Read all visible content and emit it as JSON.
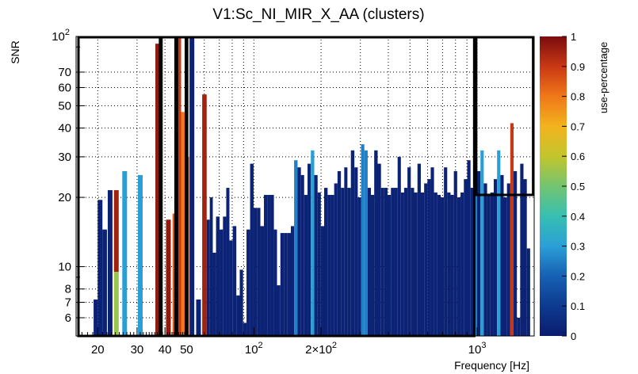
{
  "chart_data": {
    "type": "heatmap",
    "title": "V1:Sc_NI_MIR_X_AA (clusters)",
    "xlabel": "Frequency [Hz]",
    "ylabel": "SNR",
    "xscale": "log",
    "yscale": "log",
    "xlim": [
      16,
      1800
    ],
    "ylim": [
      5,
      100
    ],
    "grid": true,
    "x_ticks": [
      {
        "value": 20,
        "label": "20"
      },
      {
        "value": 30,
        "label": "30"
      },
      {
        "value": 40,
        "label": "40"
      },
      {
        "value": 50,
        "label": "50"
      },
      {
        "value": 100,
        "label": "10",
        "sup": "2"
      },
      {
        "value": 200,
        "label": "2×10",
        "sup": "2"
      },
      {
        "value": 1000,
        "label": "10",
        "sup": "3"
      }
    ],
    "y_ticks": [
      {
        "value": 6,
        "label": "6"
      },
      {
        "value": 7,
        "label": "7"
      },
      {
        "value": 8,
        "label": "8"
      },
      {
        "value": 10,
        "label": "10"
      },
      {
        "value": 20,
        "label": "20"
      },
      {
        "value": 30,
        "label": "30"
      },
      {
        "value": 40,
        "label": "40"
      },
      {
        "value": 50,
        "label": "50"
      },
      {
        "value": 60,
        "label": "60"
      },
      {
        "value": 70,
        "label": "70"
      },
      {
        "value": 100,
        "label": "10",
        "sup": "2"
      }
    ],
    "colorbar": {
      "label": "use-percentage",
      "range": [
        0,
        1
      ],
      "ticks": [
        "0",
        "0.1",
        "0.2",
        "0.3",
        "0.4",
        "0.5",
        "0.6",
        "0.7",
        "0.8",
        "0.9",
        "1"
      ]
    },
    "columns": [
      {
        "f": 19.5,
        "snr": 7.2
      },
      {
        "f": 20.5,
        "snr": 19.5
      },
      {
        "f": 21.5,
        "snr": 14.5
      },
      {
        "f": 22.5,
        "snr": 21.5
      },
      {
        "f": 24.5,
        "snr": 21.5,
        "segments": [
          {
            "to": 9.5,
            "c": 0.55
          },
          {
            "to": 21.5,
            "c": 0.95
          }
        ]
      },
      {
        "f": 25.5,
        "snr": 26,
        "c": 0.3
      },
      {
        "f": 30.5,
        "snr": 25,
        "c": 0.3
      },
      {
        "f": 39,
        "snr": 93,
        "c": 0.97
      },
      {
        "f": 41,
        "snr": 16,
        "c": 0.97
      },
      {
        "f": 45,
        "snr": 17,
        "c": 0.85
      },
      {
        "f": 46.5,
        "snr": 98,
        "c": 0.9
      },
      {
        "f": 48,
        "snr": 47,
        "c": 0.8
      },
      {
        "f": 50.5,
        "snr": 30,
        "c": 0.9
      },
      {
        "f": 52,
        "snr": 100
      },
      {
        "f": 57,
        "snr": 7.2
      },
      {
        "f": 60.5,
        "snr": 56,
        "c": 0.95
      },
      {
        "f": 62.5,
        "snr": 16
      },
      {
        "f": 64.5,
        "snr": 20
      },
      {
        "f": 66.5,
        "snr": 11.5
      },
      {
        "f": 69,
        "snr": 16.5
      },
      {
        "f": 71.5,
        "snr": 14.5
      },
      {
        "f": 74,
        "snr": 16.5
      },
      {
        "f": 76.5,
        "snr": 22
      },
      {
        "f": 79,
        "snr": 13
      },
      {
        "f": 82,
        "snr": 15
      },
      {
        "f": 85,
        "snr": 7.5
      },
      {
        "f": 88,
        "snr": 9.7
      },
      {
        "f": 91,
        "snr": 5.7
      },
      {
        "f": 94.5,
        "snr": 14.5
      },
      {
        "f": 98,
        "snr": 28
      },
      {
        "f": 101.5,
        "snr": 18
      },
      {
        "f": 105,
        "snr": 18
      },
      {
        "f": 109,
        "snr": 15
      },
      {
        "f": 113,
        "snr": 20.5
      },
      {
        "f": 117,
        "snr": 20.5
      },
      {
        "f": 121,
        "snr": 20.5
      },
      {
        "f": 125,
        "snr": 14.5
      },
      {
        "f": 129,
        "snr": 8.3
      },
      {
        "f": 134,
        "snr": 14
      },
      {
        "f": 139,
        "snr": 14
      },
      {
        "f": 144,
        "snr": 14
      },
      {
        "f": 149,
        "snr": 15
      },
      {
        "f": 154,
        "snr": 29,
        "c": 0.25
      },
      {
        "f": 160,
        "snr": 27
      },
      {
        "f": 165,
        "snr": 25
      },
      {
        "f": 171,
        "snr": 20.5
      },
      {
        "f": 177,
        "snr": 28
      },
      {
        "f": 183,
        "snr": 32,
        "c": 0.3
      },
      {
        "f": 190,
        "snr": 25
      },
      {
        "f": 196,
        "snr": 21
      },
      {
        "f": 203,
        "snr": 15
      },
      {
        "f": 210,
        "snr": 22
      },
      {
        "f": 218,
        "snr": 20.5
      },
      {
        "f": 225,
        "snr": 20.5
      },
      {
        "f": 233,
        "snr": 23
      },
      {
        "f": 241,
        "snr": 26
      },
      {
        "f": 250,
        "snr": 22
      },
      {
        "f": 258,
        "snr": 27
      },
      {
        "f": 267,
        "snr": 22
      },
      {
        "f": 277,
        "snr": 32
      },
      {
        "f": 287,
        "snr": 27
      },
      {
        "f": 297,
        "snr": 20
      },
      {
        "f": 307,
        "snr": 34,
        "c": 0.25
      },
      {
        "f": 318,
        "snr": 32,
        "c": 0.25
      },
      {
        "f": 329,
        "snr": 22
      },
      {
        "f": 340,
        "snr": 20.5
      },
      {
        "f": 352,
        "snr": 32
      },
      {
        "f": 365,
        "snr": 28
      },
      {
        "f": 377,
        "snr": 22
      },
      {
        "f": 390,
        "snr": 22
      },
      {
        "f": 404,
        "snr": 20.5
      },
      {
        "f": 418,
        "snr": 22
      },
      {
        "f": 433,
        "snr": 22
      },
      {
        "f": 448,
        "snr": 30
      },
      {
        "f": 463,
        "snr": 21
      },
      {
        "f": 479,
        "snr": 22
      },
      {
        "f": 496,
        "snr": 27
      },
      {
        "f": 513,
        "snr": 22
      },
      {
        "f": 531,
        "snr": 21
      },
      {
        "f": 550,
        "snr": 28
      },
      {
        "f": 569,
        "snr": 21
      },
      {
        "f": 589,
        "snr": 23
      },
      {
        "f": 609,
        "snr": 24
      },
      {
        "f": 630,
        "snr": 27
      },
      {
        "f": 652,
        "snr": 21
      },
      {
        "f": 675,
        "snr": 20.5
      },
      {
        "f": 698,
        "snr": 20
      },
      {
        "f": 722,
        "snr": 27
      },
      {
        "f": 747,
        "snr": 21
      },
      {
        "f": 773,
        "snr": 20.5
      },
      {
        "f": 800,
        "snr": 26
      },
      {
        "f": 828,
        "snr": 20
      },
      {
        "f": 857,
        "snr": 21
      },
      {
        "f": 887,
        "snr": 24
      },
      {
        "f": 918,
        "snr": 29
      },
      {
        "f": 950,
        "snr": 22
      },
      {
        "f": 983,
        "snr": 32,
        "c": 0.25
      },
      {
        "f": 1017,
        "snr": 26
      },
      {
        "f": 1052,
        "snr": 32,
        "c": 0.3
      },
      {
        "f": 1089,
        "snr": 23
      },
      {
        "f": 1127,
        "snr": 20.5
      },
      {
        "f": 1166,
        "snr": 21
      },
      {
        "f": 1207,
        "snr": 24
      },
      {
        "f": 1249,
        "snr": 32,
        "c": 0.3
      },
      {
        "f": 1292,
        "snr": 25
      },
      {
        "f": 1337,
        "snr": 20
      },
      {
        "f": 1383,
        "snr": 23
      },
      {
        "f": 1431,
        "snr": 42,
        "c": 0.9
      },
      {
        "f": 1481,
        "snr": 26
      },
      {
        "f": 1532,
        "snr": 6
      },
      {
        "f": 1585,
        "snr": 28
      },
      {
        "f": 1640,
        "snr": 24
      },
      {
        "f": 1697,
        "snr": 12
      }
    ],
    "boxes": [
      {
        "f_from": 16.4,
        "f_to": 38.0,
        "snr_from": 5,
        "snr_to": 100
      },
      {
        "f_from": 38.6,
        "f_to": 44.6,
        "snr_from": 5,
        "snr_to": 100
      },
      {
        "f_from": 45.3,
        "f_to": 49.6,
        "snr_from": 5,
        "snr_to": 100
      },
      {
        "f_from": 50.3,
        "f_to": 970,
        "snr_from": 5,
        "snr_to": 100
      },
      {
        "f_from": 990,
        "f_to": 1780,
        "snr_from": 20.5,
        "snr_to": 100
      }
    ]
  }
}
